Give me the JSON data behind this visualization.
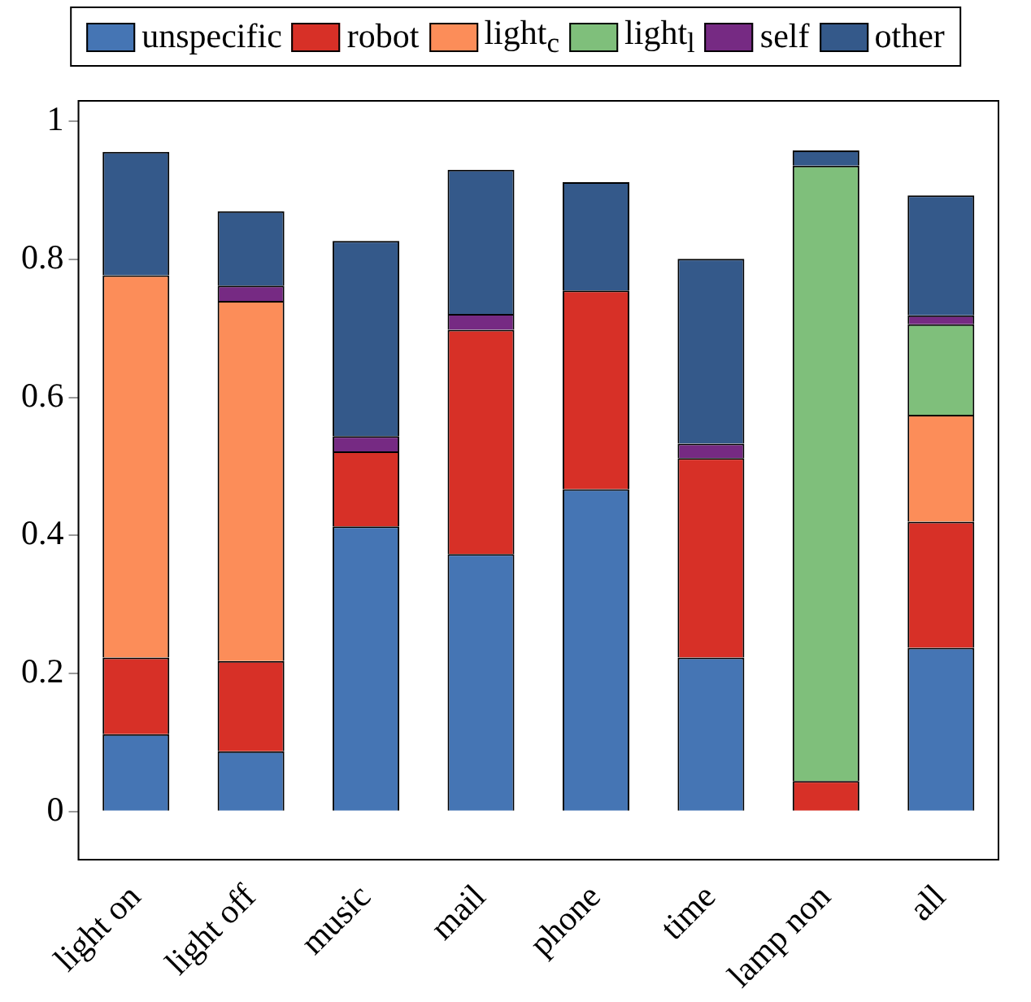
{
  "chart_data": {
    "type": "bar",
    "stacked": true,
    "legend": "top",
    "grid": false,
    "categories": [
      "light on",
      "light off",
      "music",
      "mail",
      "phone",
      "time",
      "lamp non",
      "all"
    ],
    "ylim": [
      -0.07,
      1.03
    ],
    "yticks": [
      0,
      0.2,
      0.4,
      0.6,
      0.8,
      1
    ],
    "series": [
      {
        "name": "unspecific",
        "color": "#4575b4",
        "values": [
          0.112,
          0.087,
          0.413,
          0.373,
          0.467,
          0.223,
          0,
          0.237
        ]
      },
      {
        "name": "robot",
        "color": "#d73027",
        "values": [
          0.111,
          0.131,
          0.109,
          0.325,
          0.288,
          0.289,
          0.044,
          0.183
        ]
      },
      {
        "name": "light$_{c}$",
        "color": "#fc8d59",
        "values": [
          0.554,
          0.522,
          0,
          0,
          0,
          0,
          0,
          0.155
        ]
      },
      {
        "name": "light$_{l}$",
        "color": "#7fbf7b",
        "values": [
          0,
          0,
          0,
          0,
          0,
          0,
          0.892,
          0.131
        ]
      },
      {
        "name": "self",
        "color": "#762a83",
        "values": [
          0,
          0.022,
          0.022,
          0.023,
          0,
          0.021,
          0,
          0.013
        ]
      },
      {
        "name": "other",
        "color": "#34598a",
        "values": [
          0.179,
          0.108,
          0.283,
          0.209,
          0.157,
          0.268,
          0.022,
          0.174
        ]
      }
    ]
  }
}
